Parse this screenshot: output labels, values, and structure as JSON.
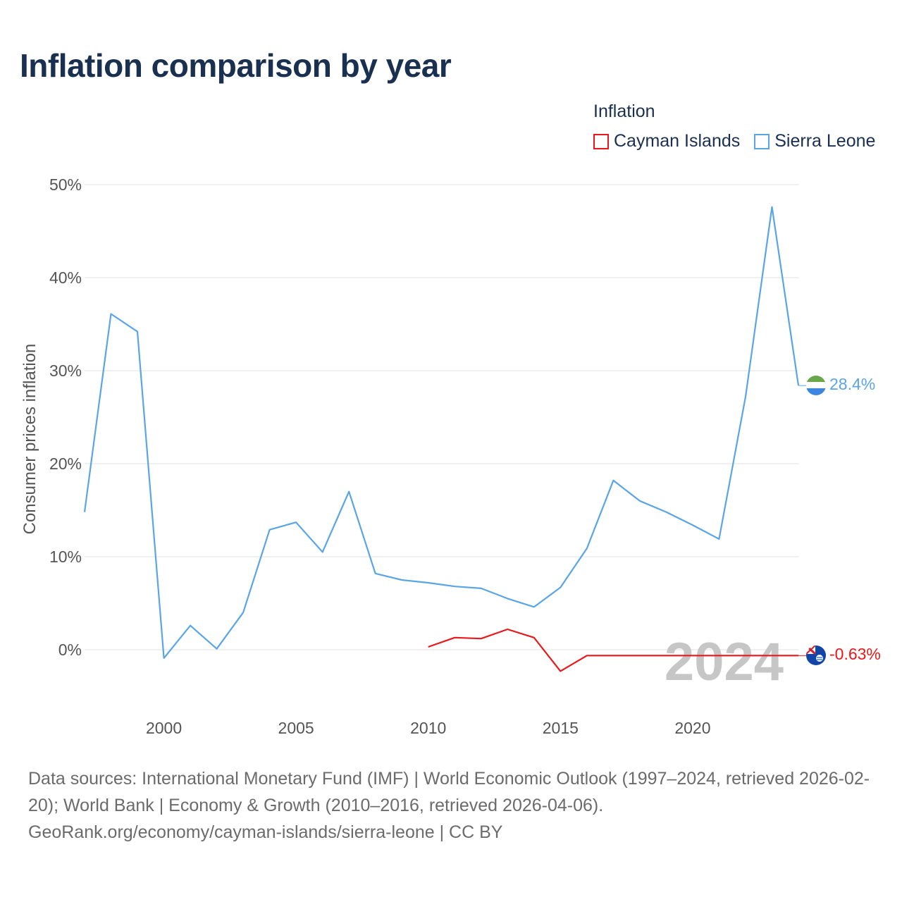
{
  "title": "Inflation comparison by year",
  "legend": {
    "title": "Inflation",
    "items": [
      {
        "label": "Cayman Islands",
        "color": "#e8191a"
      },
      {
        "label": "Sierra Leone",
        "color": "#5aa5e6"
      }
    ]
  },
  "year_marker": "2024",
  "end_labels": {
    "sierra_leone": "28.4%",
    "cayman_islands": "-0.63%"
  },
  "footer": {
    "line1": "Data sources: International Monetary Fund (IMF) | World Economic Outlook (1997–2024, retrieved 2026-02-20); World Bank | Economy & Growth (2010–2016, retrieved 2026-04-06).",
    "line2": "GeoRank.org/economy/cayman-islands/sierra-leone | CC BY"
  },
  "chart_data": {
    "type": "line",
    "title": "Inflation comparison by year",
    "xlabel": "",
    "ylabel": "Consumer prices inflation",
    "xlim": [
      1997,
      2024
    ],
    "ylim": [
      -5,
      50
    ],
    "x_ticks": [
      2000,
      2005,
      2010,
      2015,
      2020
    ],
    "y_ticks": [
      0,
      10,
      20,
      30,
      40,
      50
    ],
    "y_tick_labels": [
      "0%",
      "10%",
      "20%",
      "30%",
      "40%",
      "50%"
    ],
    "grid": true,
    "legend_position": "top-right",
    "series": [
      {
        "name": "Sierra Leone",
        "color": "#5aa5e6",
        "x": [
          1997,
          1998,
          1999,
          2000,
          2001,
          2002,
          2003,
          2004,
          2005,
          2006,
          2007,
          2008,
          2009,
          2010,
          2011,
          2012,
          2013,
          2014,
          2015,
          2016,
          2017,
          2018,
          2019,
          2020,
          2021,
          2022,
          2023,
          2024
        ],
        "values": [
          14.8,
          36.1,
          34.2,
          -0.9,
          2.6,
          0.1,
          4.0,
          12.9,
          13.7,
          10.5,
          17.0,
          8.2,
          7.5,
          7.2,
          6.8,
          6.6,
          5.5,
          4.6,
          6.7,
          10.9,
          18.2,
          16.0,
          14.8,
          13.4,
          11.9,
          27.2,
          47.6,
          28.4
        ]
      },
      {
        "name": "Cayman Islands",
        "color": "#e8191a",
        "x": [
          2010,
          2011,
          2012,
          2013,
          2014,
          2015,
          2016,
          2024
        ],
        "values": [
          0.3,
          1.3,
          1.2,
          2.2,
          1.3,
          -2.3,
          -0.63,
          -0.63
        ]
      }
    ]
  }
}
